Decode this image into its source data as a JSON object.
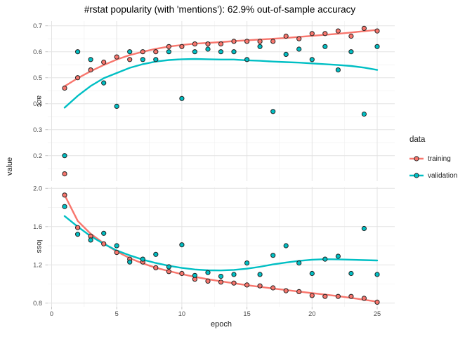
{
  "title": "#rstat popularity (with 'mentions'): 62.9% out-of-sample accuracy",
  "axes": {
    "x_label": "epoch",
    "y_label": "value",
    "x_major_ticks": [
      0,
      5,
      10,
      15,
      20,
      25
    ],
    "x_minor_ticks": [
      2.5,
      7.5,
      12.5,
      17.5,
      22.5
    ]
  },
  "legend": {
    "title": "data",
    "entries": [
      {
        "label": "training",
        "color": "#F8766D"
      },
      {
        "label": "validation",
        "color": "#00BFC4"
      }
    ]
  },
  "colors": {
    "training": "#F8766D",
    "validation": "#00BFC4",
    "grid_major": "#E3E3E3",
    "grid_minor": "#EFEFEF",
    "tick_mark": "#C4C4C4",
    "tick_label": "#4D4D4D",
    "point_stroke": "#222222"
  },
  "chart_data": {
    "type": "scatter",
    "title": "#rstat popularity (with 'mentions'): 62.9% out-of-sample accuracy",
    "xlabel": "epoch",
    "ylabel": "value",
    "legend_title": "data",
    "legend_position": "right",
    "grid": true,
    "x_domain": [
      -0.297,
      26.35
    ],
    "facets": [
      {
        "label": "acc",
        "y_domain": [
          0.102,
          0.718
        ],
        "y_major": [
          0.2,
          0.3,
          0.4,
          0.5,
          0.6,
          0.7
        ],
        "y_minor": [
          0.15,
          0.25,
          0.35,
          0.45,
          0.55,
          0.65
        ],
        "series": [
          {
            "name": "training",
            "color": "#F8766D",
            "points": [
              [
                1,
                0.46
              ],
              [
                2,
                0.5
              ],
              [
                3,
                0.53
              ],
              [
                4,
                0.56
              ],
              [
                5,
                0.58
              ],
              [
                6,
                0.57
              ],
              [
                7,
                0.6
              ],
              [
                8,
                0.6
              ],
              [
                9,
                0.62
              ],
              [
                10,
                0.62
              ],
              [
                11,
                0.63
              ],
              [
                12,
                0.63
              ],
              [
                13,
                0.63
              ],
              [
                14,
                0.64
              ],
              [
                15,
                0.64
              ],
              [
                16,
                0.64
              ],
              [
                17,
                0.64
              ],
              [
                18,
                0.66
              ],
              [
                19,
                0.65
              ],
              [
                20,
                0.67
              ],
              [
                21,
                0.67
              ],
              [
                22,
                0.68
              ],
              [
                23,
                0.66
              ],
              [
                24,
                0.69
              ],
              [
                25,
                0.68
              ]
            ],
            "smooth": [
              [
                1,
                0.467
              ],
              [
                2,
                0.498
              ],
              [
                3,
                0.525
              ],
              [
                4,
                0.549
              ],
              [
                5,
                0.57
              ],
              [
                6,
                0.587
              ],
              [
                7,
                0.6
              ],
              [
                8,
                0.611
              ],
              [
                9,
                0.62
              ],
              [
                10,
                0.626
              ],
              [
                11,
                0.631
              ],
              [
                12,
                0.634
              ],
              [
                13,
                0.637
              ],
              [
                14,
                0.641
              ],
              [
                15,
                0.644
              ],
              [
                16,
                0.647
              ],
              [
                17,
                0.65
              ],
              [
                18,
                0.653
              ],
              [
                19,
                0.657
              ],
              [
                20,
                0.661
              ],
              [
                21,
                0.665
              ],
              [
                22,
                0.669
              ],
              [
                23,
                0.674
              ],
              [
                24,
                0.679
              ],
              [
                25,
                0.684
              ]
            ]
          },
          {
            "name": "validation",
            "color": "#00BFC4",
            "points": [
              [
                1,
                0.2
              ],
              [
                2,
                0.6
              ],
              [
                3,
                0.57
              ],
              [
                4,
                0.48
              ],
              [
                5,
                0.39
              ],
              [
                6,
                0.6
              ],
              [
                7,
                0.57
              ],
              [
                8,
                0.57
              ],
              [
                9,
                0.6
              ],
              [
                10,
                0.42
              ],
              [
                11,
                0.6
              ],
              [
                12,
                0.61
              ],
              [
                13,
                0.6
              ],
              [
                14,
                0.6
              ],
              [
                15,
                0.57
              ],
              [
                16,
                0.62
              ],
              [
                17,
                0.37
              ],
              [
                18,
                0.59
              ],
              [
                19,
                0.61
              ],
              [
                20,
                0.57
              ],
              [
                21,
                0.62
              ],
              [
                22,
                0.53
              ],
              [
                23,
                0.6
              ],
              [
                24,
                0.36
              ],
              [
                25,
                0.62
              ]
            ],
            "smooth": [
              [
                1,
                0.385
              ],
              [
                2,
                0.43
              ],
              [
                3,
                0.468
              ],
              [
                4,
                0.498
              ],
              [
                5,
                0.518
              ],
              [
                6,
                0.538
              ],
              [
                7,
                0.552
              ],
              [
                8,
                0.562
              ],
              [
                9,
                0.568
              ],
              [
                10,
                0.571
              ],
              [
                11,
                0.572
              ],
              [
                12,
                0.571
              ],
              [
                13,
                0.57
              ],
              [
                14,
                0.57
              ],
              [
                15,
                0.567
              ],
              [
                16,
                0.565
              ],
              [
                17,
                0.562
              ],
              [
                18,
                0.56
              ],
              [
                19,
                0.558
              ],
              [
                20,
                0.555
              ],
              [
                21,
                0.552
              ],
              [
                22,
                0.549
              ],
              [
                23,
                0.545
              ],
              [
                24,
                0.539
              ],
              [
                25,
                0.53
              ]
            ]
          }
        ],
        "extra_points": [
          {
            "series": "training",
            "color": "#F8766D",
            "point": [
              1,
              0.13
            ]
          }
        ]
      },
      {
        "label": "loss",
        "y_domain": [
          0.7615,
          2.017
        ],
        "y_major": [
          0.8,
          1.2,
          1.6,
          2.0
        ],
        "y_minor": [
          1.0,
          1.4,
          1.8
        ],
        "series": [
          {
            "name": "training",
            "color": "#F8766D",
            "points": [
              [
                1,
                1.93
              ],
              [
                2,
                1.59
              ],
              [
                3,
                1.5
              ],
              [
                4,
                1.42
              ],
              [
                5,
                1.33
              ],
              [
                6,
                1.26
              ],
              [
                7,
                1.23
              ],
              [
                8,
                1.17
              ],
              [
                9,
                1.13
              ],
              [
                10,
                1.11
              ],
              [
                11,
                1.05
              ],
              [
                12,
                1.03
              ],
              [
                13,
                1.02
              ],
              [
                14,
                1.01
              ],
              [
                15,
                0.99
              ],
              [
                16,
                0.98
              ],
              [
                17,
                0.96
              ],
              [
                18,
                0.93
              ],
              [
                19,
                0.92
              ],
              [
                20,
                0.88
              ],
              [
                21,
                0.87
              ],
              [
                22,
                0.87
              ],
              [
                23,
                0.87
              ],
              [
                24,
                0.85
              ],
              [
                25,
                0.81
              ]
            ],
            "smooth": [
              [
                1,
                1.93
              ],
              [
                2,
                1.66
              ],
              [
                3,
                1.525
              ],
              [
                4,
                1.425
              ],
              [
                5,
                1.34
              ],
              [
                6,
                1.27
              ],
              [
                7,
                1.215
              ],
              [
                8,
                1.17
              ],
              [
                9,
                1.135
              ],
              [
                10,
                1.103
              ],
              [
                11,
                1.075
              ],
              [
                12,
                1.05
              ],
              [
                13,
                1.028
              ],
              [
                14,
                1.008
              ],
              [
                15,
                0.988
              ],
              [
                16,
                0.97
              ],
              [
                17,
                0.953
              ],
              [
                18,
                0.937
              ],
              [
                19,
                0.921
              ],
              [
                20,
                0.905
              ],
              [
                21,
                0.889
              ],
              [
                22,
                0.873
              ],
              [
                23,
                0.855
              ],
              [
                24,
                0.836
              ],
              [
                25,
                0.815
              ]
            ]
          },
          {
            "name": "validation",
            "color": "#00BFC4",
            "points": [
              [
                1,
                1.81
              ],
              [
                2,
                1.52
              ],
              [
                3,
                1.46
              ],
              [
                4,
                1.53
              ],
              [
                5,
                1.4
              ],
              [
                6,
                1.23
              ],
              [
                7,
                1.26
              ],
              [
                8,
                1.31
              ],
              [
                9,
                1.18
              ],
              [
                10,
                1.41
              ],
              [
                11,
                1.09
              ],
              [
                12,
                1.12
              ],
              [
                13,
                1.08
              ],
              [
                14,
                1.1
              ],
              [
                15,
                1.22
              ],
              [
                16,
                1.1
              ],
              [
                17,
                1.3
              ],
              [
                18,
                1.4
              ],
              [
                19,
                1.22
              ],
              [
                20,
                1.11
              ],
              [
                21,
                1.26
              ],
              [
                22,
                1.29
              ],
              [
                23,
                1.11
              ],
              [
                24,
                1.58
              ],
              [
                25,
                1.1
              ]
            ],
            "smooth": [
              [
                1,
                1.71
              ],
              [
                2,
                1.6
              ],
              [
                3,
                1.5
              ],
              [
                4,
                1.42
              ],
              [
                5,
                1.35
              ],
              [
                6,
                1.3
              ],
              [
                7,
                1.255
              ],
              [
                8,
                1.22
              ],
              [
                9,
                1.19
              ],
              [
                10,
                1.168
              ],
              [
                11,
                1.152
              ],
              [
                12,
                1.143
              ],
              [
                13,
                1.142
              ],
              [
                14,
                1.148
              ],
              [
                15,
                1.16
              ],
              [
                16,
                1.18
              ],
              [
                17,
                1.205
              ],
              [
                18,
                1.225
              ],
              [
                19,
                1.242
              ],
              [
                20,
                1.254
              ],
              [
                21,
                1.259
              ],
              [
                22,
                1.258
              ],
              [
                23,
                1.254
              ],
              [
                24,
                1.25
              ],
              [
                25,
                1.246
              ]
            ]
          }
        ],
        "extra_points": []
      }
    ]
  }
}
